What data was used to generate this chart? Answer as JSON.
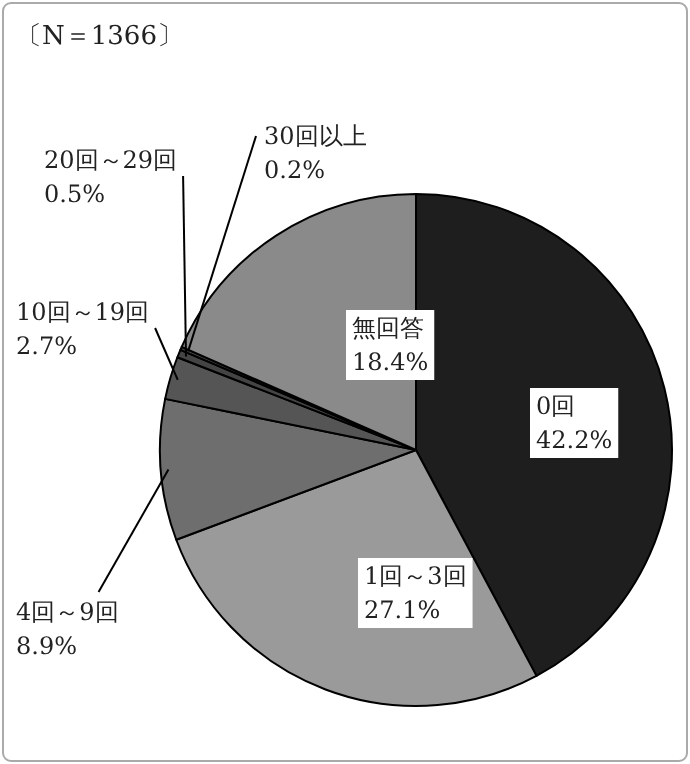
{
  "chart_data": {
    "type": "pie",
    "title": "〔N＝1366〕",
    "categories": [
      "0回",
      "1回～3回",
      "4回～9回",
      "10回～19回",
      "20回～29回",
      "30回以上",
      "無回答"
    ],
    "values": [
      42.2,
      27.1,
      8.9,
      2.7,
      0.5,
      0.2,
      18.4
    ],
    "colors": [
      "#1e1e1e",
      "#9a9a9a",
      "#6e6e6e",
      "#555555",
      "#444444",
      "#444444",
      "#8a8a8a"
    ],
    "value_labels": [
      "42.2%",
      "27.1%",
      "8.9%",
      "2.7%",
      "0.5%",
      "0.2%",
      "18.4%"
    ]
  }
}
